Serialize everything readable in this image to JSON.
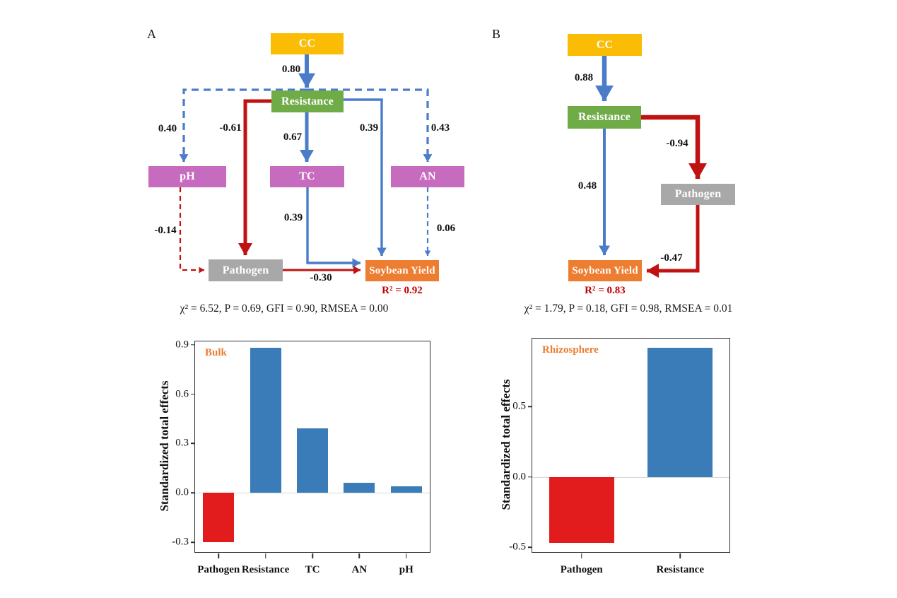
{
  "figure": {
    "panel_a_label": "A",
    "panel_b_label": "B"
  },
  "colors": {
    "cc_box": "#FBBC05",
    "resistance_box": "#6FAC47",
    "soil_property_box": "#C76BBE",
    "pathogen_box": "#A8A8A8",
    "yield_box": "#ED7D31",
    "positive_arrow_blue": "#4A7CC9",
    "negative_arrow_red": "#C11212",
    "positive_bar_blue": "#3A7CB8",
    "negative_bar_red": "#E21C1C",
    "r2_text": "#C00000",
    "annotation_text": "#ED7D31"
  },
  "panel_a": {
    "nodes": {
      "cc": "CC",
      "resistance": "Resistance",
      "ph": "pH",
      "tc": "TC",
      "an": "AN",
      "pathogen": "Pathogen",
      "yield": "Soybean Yield"
    },
    "coefficients": {
      "cc_resistance": "0.80",
      "resistance_ph": "0.40",
      "resistance_pathogen": "-0.61",
      "resistance_tc": "0.67",
      "resistance_yield": "0.39",
      "resistance_an": "0.43",
      "tc_yield": "0.39",
      "ph_pathogen": "-0.14",
      "an_yield": "0.06",
      "pathogen_yield": "-0.30"
    },
    "r2": "R² = 0.92",
    "fit": "χ² = 6.52,  P = 0.69, GFI = 0.90, RMSEA = 0.00"
  },
  "panel_b": {
    "nodes": {
      "cc": "CC",
      "resistance": "Resistance",
      "pathogen": "Pathogen",
      "yield": "Soybean Yield"
    },
    "coefficients": {
      "cc_resistance": "0.88",
      "resistance_pathogen": "-0.94",
      "resistance_yield": "0.48",
      "pathogen_yield": "-0.47"
    },
    "r2": "R² = 0.83",
    "fit": "χ² = 1.79,  P = 0.18, GFI = 0.98, RMSEA = 0.01"
  },
  "chart_data": [
    {
      "type": "bar",
      "annotation": "Bulk",
      "categories": [
        "Pathogen",
        "Resistance",
        "TC",
        "AN",
        "pH"
      ],
      "values": [
        -0.3,
        0.88,
        0.39,
        0.06,
        0.04
      ],
      "bar_colors": [
        "#E21C1C",
        "#3A7CB8",
        "#3A7CB8",
        "#3A7CB8",
        "#3A7CB8"
      ],
      "xlabel": "",
      "ylabel": "Standardized total effects",
      "ylim": [
        -0.36,
        0.92
      ],
      "yticks": [
        {
          "value": 0.9,
          "label": "0.9"
        },
        {
          "value": 0.6,
          "label": "0.6"
        },
        {
          "value": 0.3,
          "label": "0.3"
        },
        {
          "value": 0.0,
          "label": "0.0"
        },
        {
          "value": -0.3,
          "label": "-0.3"
        }
      ],
      "zero_line": true,
      "grid": false,
      "legend_position": "none"
    },
    {
      "type": "bar",
      "annotation": "Rhizosphere",
      "categories": [
        "Pathogen",
        "Resistance"
      ],
      "values": [
        -0.47,
        0.92
      ],
      "bar_colors": [
        "#E21C1C",
        "#3A7CB8"
      ],
      "xlabel": "",
      "ylabel": "Standardized total effects",
      "ylim": [
        -0.535,
        0.985
      ],
      "yticks": [
        {
          "value": 0.5,
          "label": "0.5"
        },
        {
          "value": 0.0,
          "label": "0.0"
        },
        {
          "value": -0.5,
          "label": "-0.5"
        }
      ],
      "zero_line": true,
      "grid": false,
      "legend_position": "none"
    }
  ]
}
